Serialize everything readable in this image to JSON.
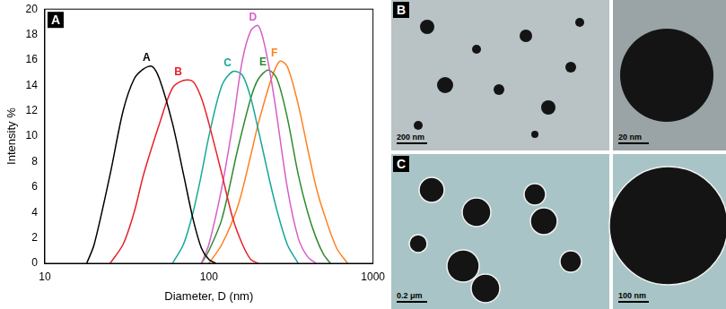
{
  "chart_data": {
    "type": "line",
    "panel_label": "A",
    "x_label": "Diameter, D (nm)",
    "y_label": "Intensity %",
    "log": "x",
    "xlim": [
      10,
      1000
    ],
    "xticks": [
      10,
      100,
      1000
    ],
    "ylim": [
      0,
      20
    ],
    "yticks": [
      0,
      2,
      4,
      6,
      8,
      10,
      12,
      14,
      16,
      18,
      20
    ],
    "grid": false,
    "series": [
      {
        "name": "A",
        "color": "#000000",
        "x": [
          18,
          20,
          25,
          30,
          35,
          40,
          45,
          50,
          60,
          70,
          80,
          90,
          100,
          110
        ],
        "values": [
          0,
          1.5,
          7,
          12,
          14.5,
          15.3,
          15.5,
          14.5,
          11,
          7,
          3.5,
          1.2,
          0.3,
          0
        ]
      },
      {
        "name": "B",
        "color": "#e8202a",
        "x": [
          25,
          30,
          35,
          40,
          50,
          60,
          70,
          80,
          90,
          100,
          120,
          140,
          160,
          180,
          200
        ],
        "values": [
          0,
          1.5,
          4,
          7,
          11,
          13.8,
          14.4,
          14.3,
          13,
          11,
          7,
          3.5,
          1.5,
          0.3,
          0
        ]
      },
      {
        "name": "C",
        "color": "#17a898",
        "x": [
          60,
          70,
          80,
          90,
          100,
          120,
          140,
          160,
          180,
          200,
          250,
          300,
          350
        ],
        "values": [
          0,
          1.5,
          4,
          7,
          10,
          14,
          15.1,
          14.8,
          13,
          10.5,
          5,
          1.5,
          0
        ]
      },
      {
        "name": "D",
        "color": "#d65fc8",
        "x": [
          90,
          100,
          120,
          140,
          160,
          180,
          200,
          220,
          250,
          300,
          350,
          400,
          450
        ],
        "values": [
          0,
          1.5,
          6,
          11,
          16,
          18.3,
          18.7,
          17,
          13,
          6,
          2,
          0.5,
          0
        ]
      },
      {
        "name": "E",
        "color": "#2e8b2e",
        "x": [
          90,
          100,
          120,
          150,
          180,
          200,
          230,
          260,
          300,
          350,
          400,
          450,
          500,
          550
        ],
        "values": [
          0,
          1,
          3.5,
          9,
          13,
          14.5,
          15.2,
          14.5,
          11.5,
          7,
          4,
          2,
          0.7,
          0
        ]
      },
      {
        "name": "F",
        "color": "#ff7f1e",
        "x": [
          100,
          120,
          150,
          180,
          200,
          240,
          270,
          300,
          350,
          400,
          450,
          500,
          600,
          700
        ],
        "values": [
          0,
          1.5,
          4.5,
          8.5,
          11,
          14.5,
          15.9,
          15.5,
          12.5,
          9,
          6,
          4,
          1.2,
          0
        ]
      }
    ]
  },
  "images": [
    {
      "panel_label": "B",
      "scale_bars": [
        "200 nm",
        "20 nm"
      ]
    },
    {
      "panel_label": "C",
      "scale_bars": [
        "0.2 μm",
        "100 nm"
      ]
    }
  ]
}
